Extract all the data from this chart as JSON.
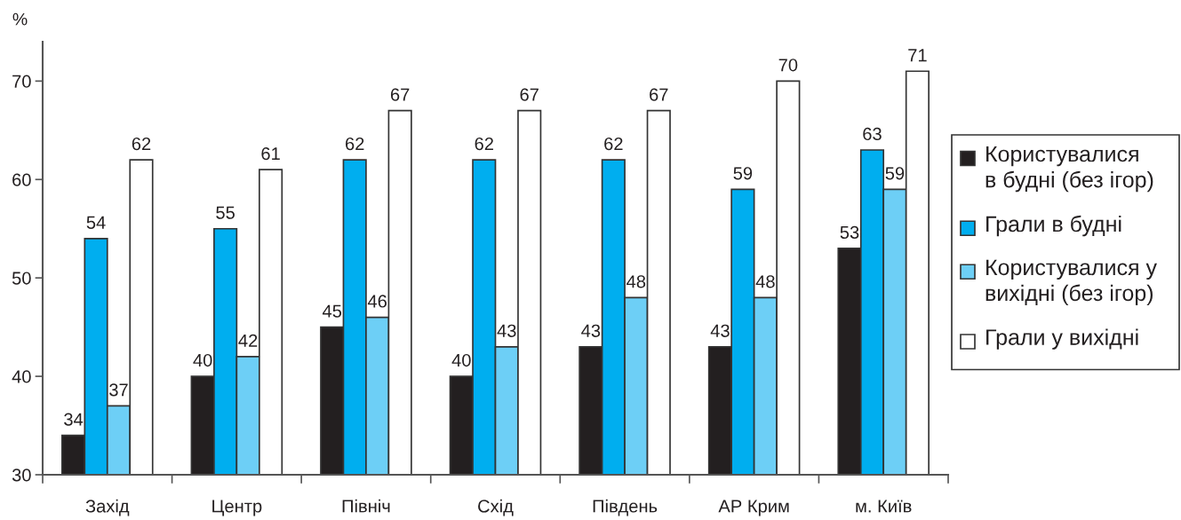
{
  "chart_data": {
    "type": "bar",
    "ylabel": "%",
    "categories": [
      "Захід",
      "Центр",
      "Північ",
      "Схід",
      "Південь",
      "АР Крим",
      "м. Київ"
    ],
    "series": [
      {
        "name": "Користувалися\nв будні (без ігор)",
        "color": "#231f20",
        "values": [
          34,
          40,
          45,
          40,
          43,
          43,
          53
        ]
      },
      {
        "name": "Грали в будні",
        "color": "#00aeef",
        "values": [
          54,
          55,
          62,
          62,
          62,
          59,
          63
        ]
      },
      {
        "name": "Користувалися у\nвихідні (без ігор)",
        "color": "#6dcff6",
        "values": [
          37,
          42,
          46,
          43,
          48,
          48,
          59
        ]
      },
      {
        "name": "Грали у вихідні",
        "color": "#ffffff",
        "values": [
          62,
          61,
          67,
          67,
          67,
          70,
          71
        ]
      }
    ],
    "ylim": [
      30,
      74
    ],
    "yticks": [
      30,
      40,
      50,
      60,
      70
    ],
    "data_labels": true,
    "grid": false,
    "legend": "right"
  }
}
